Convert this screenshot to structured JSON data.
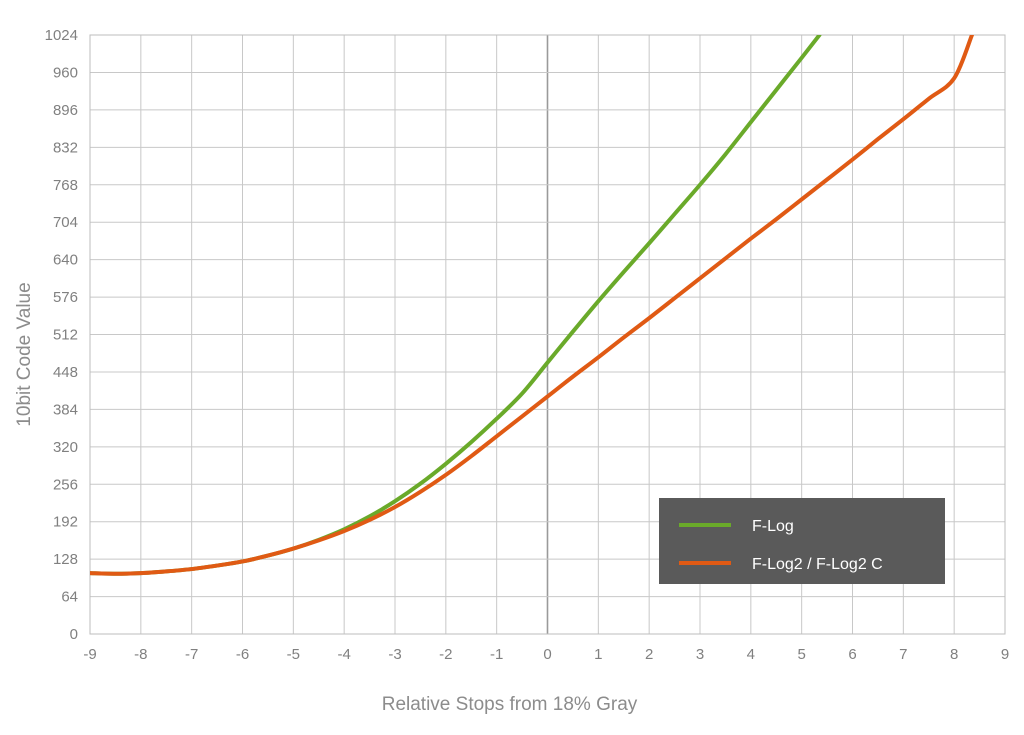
{
  "chart_data": {
    "type": "line",
    "title": "",
    "xlabel": "Relative Stops from 18% Gray",
    "ylabel": "10bit Code Value",
    "xlim": [
      -9,
      9
    ],
    "ylim": [
      0,
      1024
    ],
    "x_ticks": [
      "-9",
      "-8",
      "-7",
      "-6",
      "-5",
      "-4",
      "-3",
      "-2",
      "-1",
      "0",
      "1",
      "2",
      "3",
      "4",
      "5",
      "6",
      "7",
      "8",
      "9"
    ],
    "y_ticks": [
      "0",
      "64",
      "128",
      "192",
      "256",
      "320",
      "384",
      "448",
      "512",
      "576",
      "640",
      "704",
      "768",
      "832",
      "896",
      "960",
      "1024"
    ],
    "grid": true,
    "legend_position": "bottom-right",
    "series": [
      {
        "name": "F-Log",
        "color": "#6aaa2a",
        "x": [
          -9,
          -8.5,
          -8,
          -7.5,
          -7,
          -6.5,
          -6,
          -5.5,
          -5,
          -4.5,
          -4,
          -3.5,
          -3,
          -2.5,
          -2,
          -1.5,
          -1,
          -0.5,
          0,
          0.5,
          1,
          1.5,
          2,
          2.5,
          3,
          3.5,
          4,
          4.5,
          5,
          5.35
        ],
        "y": [
          104,
          103,
          104,
          107,
          111,
          117,
          124,
          134,
          146,
          161,
          179,
          201,
          227,
          257,
          291,
          328,
          368,
          411,
          464,
          517,
          569,
          619,
          668,
          718,
          768,
          820,
          875,
          930,
          985,
          1024
        ]
      },
      {
        "name": "F-Log2 / F-Log2 C",
        "color": "#e05a14",
        "x": [
          -9,
          -8.5,
          -8,
          -7.5,
          -7,
          -6.5,
          -6,
          -5.5,
          -5,
          -4.5,
          -4,
          -3.5,
          -3,
          -2.5,
          -2,
          -1.5,
          -1,
          -0.5,
          0,
          0.5,
          1,
          1.5,
          2,
          2.5,
          3,
          3.5,
          4,
          4.5,
          5,
          5.5,
          6,
          6.5,
          7,
          7.5,
          8,
          8.35
        ],
        "y": [
          104,
          103,
          104,
          107,
          111,
          117,
          124,
          134,
          146,
          160,
          176,
          195,
          217,
          243,
          272,
          304,
          338,
          372,
          406,
          440,
          473,
          507,
          540,
          574,
          608,
          642,
          676,
          709,
          743,
          777,
          811,
          846,
          880,
          915,
          950,
          1024
        ]
      }
    ]
  },
  "legend": {
    "items": [
      {
        "label": "F-Log",
        "color": "#6aaa2a"
      },
      {
        "label": "F-Log2 / F-Log2 C",
        "color": "#e05a14"
      }
    ],
    "background": "#5a5a5a"
  }
}
